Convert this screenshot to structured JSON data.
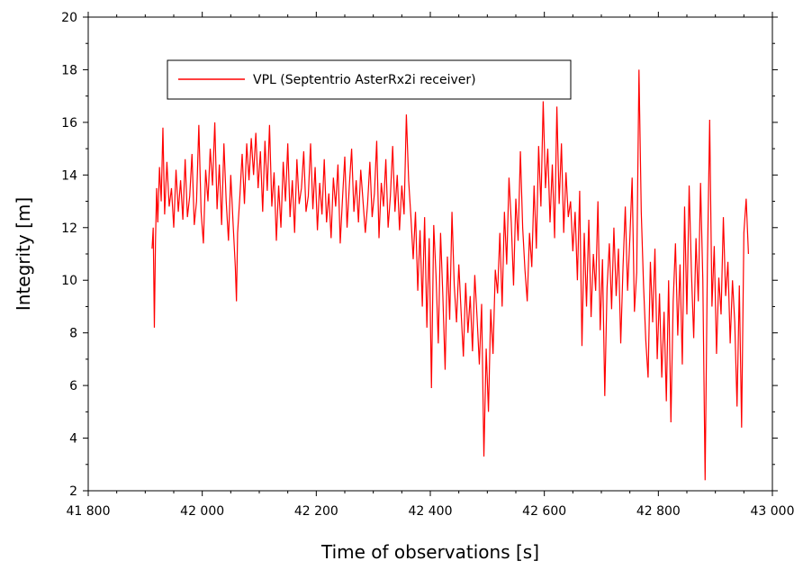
{
  "chart_data": {
    "type": "line",
    "title": "",
    "xlabel": "Time of observations [s]",
    "ylabel": "Integrity [m]",
    "xlim": [
      41800,
      43000
    ],
    "ylim": [
      2,
      20
    ],
    "x_ticks": [
      41800,
      42000,
      42200,
      42400,
      42600,
      42800,
      43000
    ],
    "x_tick_labels": [
      "41 800",
      "42 000",
      "42 200",
      "42 400",
      "42 600",
      "42 800",
      "43 000"
    ],
    "y_ticks": [
      2,
      4,
      6,
      8,
      10,
      12,
      14,
      16,
      18,
      20
    ],
    "y_tick_labels": [
      "2",
      "4",
      "6",
      "8",
      "10",
      "12",
      "14",
      "16",
      "18",
      "20"
    ],
    "grid": false,
    "legend_position": "top-left",
    "series": [
      {
        "name": "VPL (Septentrio AsterRx2i receiver)",
        "color": "#ff0000",
        "x": [
          41912,
          41914,
          41916,
          41918,
          41920,
          41922,
          41925,
          41928,
          41931,
          41934,
          41938,
          41942,
          41946,
          41950,
          41954,
          41958,
          41962,
          41966,
          41970,
          41974,
          41978,
          41982,
          41986,
          41990,
          41994,
          41998,
          42002,
          42006,
          42010,
          42014,
          42018,
          42022,
          42026,
          42030,
          42034,
          42038,
          42042,
          42046,
          42050,
          42054,
          42058,
          42060,
          42062,
          42066,
          42070,
          42074,
          42078,
          42082,
          42086,
          42090,
          42094,
          42098,
          42102,
          42106,
          42110,
          42114,
          42118,
          42122,
          42126,
          42130,
          42134,
          42138,
          42142,
          42146,
          42150,
          42154,
          42158,
          42162,
          42166,
          42170,
          42174,
          42178,
          42182,
          42186,
          42190,
          42194,
          42198,
          42202,
          42206,
          42210,
          42214,
          42218,
          42222,
          42226,
          42230,
          42234,
          42238,
          42242,
          42246,
          42250,
          42254,
          42258,
          42262,
          42266,
          42270,
          42274,
          42278,
          42282,
          42286,
          42290,
          42294,
          42298,
          42302,
          42306,
          42310,
          42314,
          42318,
          42322,
          42326,
          42330,
          42334,
          42338,
          42342,
          42346,
          42350,
          42354,
          42358,
          42362,
          42366,
          42370,
          42374,
          42378,
          42382,
          42386,
          42390,
          42394,
          42398,
          42402,
          42406,
          42410,
          42414,
          42418,
          42422,
          42426,
          42430,
          42434,
          42438,
          42442,
          42446,
          42450,
          42454,
          42458,
          42462,
          42466,
          42470,
          42474,
          42478,
          42482,
          42486,
          42490,
          42494,
          42498,
          42502,
          42506,
          42510,
          42514,
          42518,
          42522,
          42526,
          42530,
          42534,
          42538,
          42542,
          42546,
          42550,
          42554,
          42558,
          42562,
          42566,
          42570,
          42574,
          42578,
          42582,
          42586,
          42590,
          42594,
          42598,
          42602,
          42606,
          42610,
          42614,
          42618,
          42622,
          42626,
          42630,
          42634,
          42638,
          42642,
          42646,
          42650,
          42654,
          42658,
          42662,
          42666,
          42670,
          42674,
          42678,
          42682,
          42686,
          42690,
          42694,
          42698,
          42702,
          42706,
          42710,
          42714,
          42718,
          42722,
          42726,
          42730,
          42734,
          42738,
          42742,
          42746,
          42750,
          42754,
          42758,
          42762,
          42766,
          42770,
          42774,
          42778,
          42782,
          42786,
          42790,
          42794,
          42798,
          42802,
          42806,
          42810,
          42814,
          42818,
          42822,
          42826,
          42830,
          42834,
          42838,
          42842,
          42846,
          42850,
          42854,
          42858,
          42862,
          42866,
          42870,
          42874,
          42878,
          42882,
          42886,
          42890,
          42894,
          42898,
          42902,
          42906,
          42910,
          42914,
          42918,
          42922,
          42926,
          42930,
          42934,
          42938,
          42942,
          42946,
          42950,
          42954,
          42958
        ],
        "y": [
          11.2,
          12.0,
          8.2,
          11.5,
          13.5,
          12.2,
          14.3,
          13.0,
          15.8,
          12.5,
          14.5,
          12.8,
          13.5,
          12.0,
          14.2,
          12.6,
          13.8,
          12.3,
          14.6,
          12.4,
          13.2,
          14.8,
          12.1,
          13.0,
          15.9,
          12.6,
          11.4,
          14.2,
          13.0,
          15.0,
          13.6,
          16.0,
          12.7,
          14.4,
          12.1,
          15.2,
          13.0,
          11.5,
          14.0,
          12.2,
          10.5,
          9.2,
          11.8,
          13.2,
          14.8,
          12.9,
          15.2,
          13.8,
          15.4,
          14.0,
          15.6,
          13.5,
          14.9,
          12.6,
          15.3,
          13.4,
          15.9,
          12.8,
          14.1,
          11.5,
          13.6,
          12.0,
          14.5,
          13.0,
          15.2,
          12.4,
          13.8,
          11.8,
          14.6,
          12.9,
          13.5,
          14.9,
          12.6,
          13.2,
          15.2,
          12.7,
          14.3,
          11.9,
          13.7,
          12.5,
          14.6,
          12.2,
          13.3,
          11.6,
          13.9,
          12.8,
          14.4,
          11.4,
          13.1,
          14.7,
          12.0,
          13.6,
          15.0,
          12.6,
          13.8,
          12.2,
          14.2,
          13.0,
          11.8,
          12.9,
          14.5,
          12.4,
          13.3,
          15.3,
          11.6,
          13.7,
          12.8,
          14.6,
          12.0,
          13.2,
          15.1,
          12.6,
          14.0,
          11.9,
          13.6,
          12.5,
          16.3,
          13.8,
          12.4,
          10.8,
          12.6,
          9.6,
          11.9,
          9.0,
          12.4,
          8.2,
          11.6,
          5.9,
          12.1,
          10.2,
          7.6,
          11.8,
          9.4,
          6.6,
          10.9,
          8.5,
          12.6,
          9.8,
          8.4,
          10.6,
          8.8,
          7.1,
          9.9,
          8.0,
          9.4,
          7.3,
          10.2,
          8.6,
          6.8,
          9.1,
          3.3,
          7.4,
          5.0,
          8.9,
          7.2,
          10.4,
          9.5,
          11.8,
          9.0,
          12.6,
          10.6,
          13.9,
          12.2,
          9.8,
          13.1,
          11.5,
          14.9,
          12.0,
          10.4,
          9.2,
          11.8,
          10.5,
          13.6,
          11.2,
          15.1,
          12.8,
          16.8,
          13.5,
          15.0,
          12.2,
          14.4,
          11.6,
          16.6,
          12.9,
          15.2,
          11.8,
          14.1,
          12.4,
          13.0,
          11.1,
          12.6,
          10.0,
          13.4,
          7.5,
          11.8,
          9.0,
          12.3,
          8.6,
          11.0,
          9.6,
          13.0,
          8.1,
          10.8,
          5.6,
          9.7,
          11.4,
          8.9,
          12.0,
          9.4,
          11.2,
          7.6,
          10.5,
          12.8,
          9.6,
          11.6,
          13.9,
          8.8,
          10.3,
          18.0,
          12.6,
          9.8,
          7.7,
          6.3,
          10.7,
          8.4,
          11.2,
          7.0,
          9.5,
          6.3,
          8.8,
          5.4,
          10.0,
          4.6,
          9.2,
          11.4,
          7.9,
          10.6,
          6.8,
          12.8,
          8.7,
          13.6,
          10.3,
          7.8,
          11.6,
          9.2,
          13.7,
          10.0,
          2.4,
          10.6,
          16.1,
          9.0,
          11.3,
          7.2,
          10.1,
          8.7,
          12.4,
          9.4,
          10.7,
          7.6,
          10.0,
          8.4,
          5.2,
          9.8,
          4.4,
          11.8,
          13.1,
          11.0
        ]
      }
    ]
  }
}
